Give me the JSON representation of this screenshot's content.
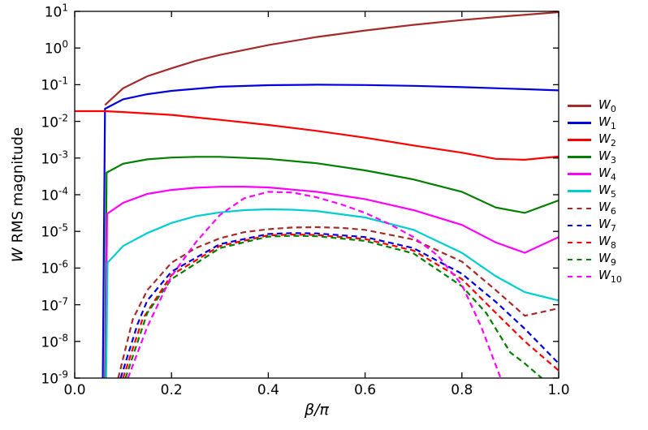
{
  "chart_data": {
    "type": "line",
    "title": "",
    "xlabel": "β/π",
    "ylabel_math": "W",
    "ylabel_text": "RMS magnitude",
    "xlim": [
      0.0,
      1.0
    ],
    "ylim": [
      1e-09,
      10
    ],
    "yscale": "log",
    "grid": false,
    "legend_position": "right-outside",
    "xticks": [
      {
        "v": 0.0,
        "label": "0.0"
      },
      {
        "v": 0.2,
        "label": "0.2"
      },
      {
        "v": 0.4,
        "label": "0.4"
      },
      {
        "v": 0.6,
        "label": "0.6"
      },
      {
        "v": 0.8,
        "label": "0.8"
      },
      {
        "v": 1.0,
        "label": "1.0"
      }
    ],
    "ytick_base": "10",
    "ytick_exponents": [
      1,
      0,
      -1,
      -2,
      -3,
      -4,
      -5,
      -6,
      -7,
      -8,
      -9
    ],
    "series": [
      {
        "label": "W_0",
        "color": "#a52a2a",
        "style": "solid",
        "x": [
          0.0625,
          0.1,
          0.15,
          0.2,
          0.25,
          0.3,
          0.4,
          0.5,
          0.6,
          0.7,
          0.8,
          0.9,
          1.0
        ],
        "y": [
          0.028,
          0.08,
          0.17,
          0.28,
          0.45,
          0.65,
          1.2,
          2.0,
          3.0,
          4.3,
          5.8,
          7.5,
          9.5
        ]
      },
      {
        "label": "W_1",
        "color": "#0000dd",
        "style": "solid",
        "x": [
          0.058,
          0.0625,
          0.1,
          0.15,
          0.2,
          0.3,
          0.4,
          0.5,
          0.6,
          0.7,
          0.8,
          0.9,
          1.0
        ],
        "y": [
          1e-09,
          0.022,
          0.04,
          0.055,
          0.068,
          0.088,
          0.097,
          0.1,
          0.098,
          0.093,
          0.086,
          0.078,
          0.07
        ]
      },
      {
        "label": "W_2",
        "color": "#ff0000",
        "style": "solid",
        "x": [
          0.0,
          0.0625,
          0.1,
          0.2,
          0.3,
          0.4,
          0.5,
          0.6,
          0.7,
          0.8,
          0.87,
          0.93,
          1.0
        ],
        "y": [
          0.019,
          0.019,
          0.018,
          0.015,
          0.011,
          0.008,
          0.0055,
          0.0036,
          0.0022,
          0.0014,
          0.00095,
          0.0009,
          0.0011
        ]
      },
      {
        "label": "W_3",
        "color": "#007f00",
        "style": "solid",
        "x": [
          0.0625,
          0.066,
          0.1,
          0.15,
          0.2,
          0.25,
          0.3,
          0.4,
          0.5,
          0.6,
          0.7,
          0.8,
          0.87,
          0.93,
          1.0
        ],
        "y": [
          1e-09,
          0.0004,
          0.0007,
          0.00092,
          0.00103,
          0.00108,
          0.00108,
          0.00095,
          0.00072,
          0.00046,
          0.00026,
          0.00012,
          4.5e-05,
          3.2e-05,
          7e-05
        ]
      },
      {
        "label": "W_4",
        "color": "#ff00ff",
        "style": "solid",
        "x": [
          0.064,
          0.067,
          0.1,
          0.15,
          0.2,
          0.25,
          0.3,
          0.35,
          0.4,
          0.5,
          0.6,
          0.7,
          0.8,
          0.87,
          0.93,
          1.0
        ],
        "y": [
          1e-09,
          3e-05,
          6e-05,
          0.000105,
          0.000135,
          0.000155,
          0.000165,
          0.000166,
          0.000158,
          0.00012,
          7.6e-05,
          3.8e-05,
          1.5e-05,
          5e-06,
          2.6e-06,
          7e-06
        ]
      },
      {
        "label": "W_5",
        "color": "#00cdd1",
        "style": "solid",
        "x": [
          0.065,
          0.068,
          0.1,
          0.15,
          0.2,
          0.25,
          0.3,
          0.35,
          0.4,
          0.45,
          0.5,
          0.6,
          0.7,
          0.8,
          0.87,
          0.93,
          1.0
        ],
        "y": [
          1e-09,
          1.4e-06,
          4e-06,
          9e-06,
          1.7e-05,
          2.6e-05,
          3.3e-05,
          3.8e-05,
          4e-05,
          3.9e-05,
          3.6e-05,
          2.4e-05,
          1.1e-05,
          2.6e-06,
          6e-07,
          2.2e-07,
          1.3e-07
        ]
      },
      {
        "label": "W_6",
        "color": "#a52a2a",
        "style": "dashed",
        "x": [
          0.09,
          0.12,
          0.15,
          0.2,
          0.25,
          0.3,
          0.35,
          0.4,
          0.45,
          0.5,
          0.55,
          0.6,
          0.7,
          0.8,
          0.87,
          0.93,
          1.0
        ],
        "y": [
          1e-09,
          4e-08,
          2.5e-07,
          1.4e-06,
          3.5e-06,
          6.5e-06,
          9.5e-06,
          1.15e-05,
          1.28e-05,
          1.3e-05,
          1.25e-05,
          1.1e-05,
          6e-06,
          1.5e-06,
          2.5e-07,
          5e-08,
          8e-08
        ]
      },
      {
        "label": "W_7",
        "color": "#0000dd",
        "style": "dashed",
        "x": [
          0.095,
          0.13,
          0.15,
          0.2,
          0.3,
          0.4,
          0.45,
          0.5,
          0.6,
          0.7,
          0.8,
          0.87,
          0.93,
          1.0
        ],
        "y": [
          1e-09,
          3e-08,
          1.3e-07,
          8e-07,
          4.5e-06,
          8.5e-06,
          9e-06,
          8.8e-06,
          7e-06,
          3.5e-06,
          7e-07,
          1.2e-07,
          2.2e-08,
          2.5e-09
        ]
      },
      {
        "label": "W_8",
        "color": "#ff0000",
        "style": "dashed",
        "x": [
          0.1,
          0.14,
          0.2,
          0.3,
          0.4,
          0.45,
          0.5,
          0.6,
          0.7,
          0.8,
          0.87,
          0.93,
          1.0
        ],
        "y": [
          1e-09,
          4e-08,
          6.5e-07,
          4e-06,
          7.8e-06,
          8.2e-06,
          8e-06,
          6.2e-06,
          3e-06,
          5e-07,
          6e-08,
          1e-08,
          1.6e-09
        ]
      },
      {
        "label": "W_9",
        "color": "#007f00",
        "style": "dashed",
        "x": [
          0.105,
          0.15,
          0.2,
          0.3,
          0.4,
          0.45,
          0.5,
          0.6,
          0.7,
          0.8,
          0.85,
          0.9,
          0.93,
          0.965
        ],
        "y": [
          1e-09,
          6e-08,
          5e-07,
          3.5e-06,
          7.2e-06,
          7.6e-06,
          7.4e-06,
          5.5e-06,
          2.5e-06,
          3.2e-07,
          6e-08,
          5e-09,
          2.5e-09,
          1e-09
        ]
      },
      {
        "label": "W_10",
        "color": "#ff00ff",
        "style": "dashed",
        "x": [
          0.11,
          0.15,
          0.2,
          0.25,
          0.3,
          0.35,
          0.4,
          0.45,
          0.5,
          0.55,
          0.6,
          0.65,
          0.7,
          0.75,
          0.8,
          0.84,
          0.88
        ],
        "y": [
          1e-09,
          2.5e-08,
          6e-07,
          5e-06,
          2.8e-05,
          8e-05,
          0.00012,
          0.000115,
          8.5e-05,
          5.5e-05,
          3.2e-05,
          1.6e-05,
          7e-06,
          2.2e-06,
          3.5e-07,
          2.5e-08,
          1e-09
        ]
      }
    ]
  }
}
